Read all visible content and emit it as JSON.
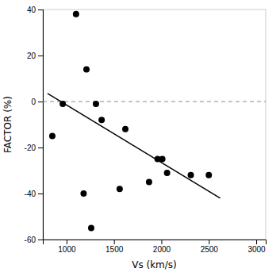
{
  "chart_data": {
    "type": "scatter",
    "series": [
      {
        "type": "scatter",
        "marker": "circle",
        "color": "#000000",
        "x": [
          850,
          960,
          1100,
          1180,
          1210,
          1260,
          1310,
          1370,
          1560,
          1620,
          1870,
          1960,
          2010,
          2060,
          2310,
          2500
        ],
        "values": [
          -15,
          -1,
          38,
          -40,
          14,
          -55,
          -1,
          -8,
          -38,
          -12,
          -35,
          -25,
          -25,
          -31,
          -32,
          -32
        ]
      },
      {
        "type": "line",
        "line_style": "solid",
        "color": "#000000",
        "x": [
          800,
          2620
        ],
        "values": [
          3.5,
          -42.0
        ]
      }
    ],
    "reference_line": {
      "y": 0,
      "color": "#888888",
      "line_style": "dashed"
    },
    "xlabel": "Vs (km/s)",
    "ylabel": "FACTOR (%)",
    "xlim": [
      750,
      3100
    ],
    "ylim": [
      -60,
      40
    ],
    "xticks": [
      1000,
      1500,
      2000,
      2500,
      3000
    ],
    "yticks": [
      -60,
      -40,
      -20,
      0,
      20,
      40
    ]
  }
}
